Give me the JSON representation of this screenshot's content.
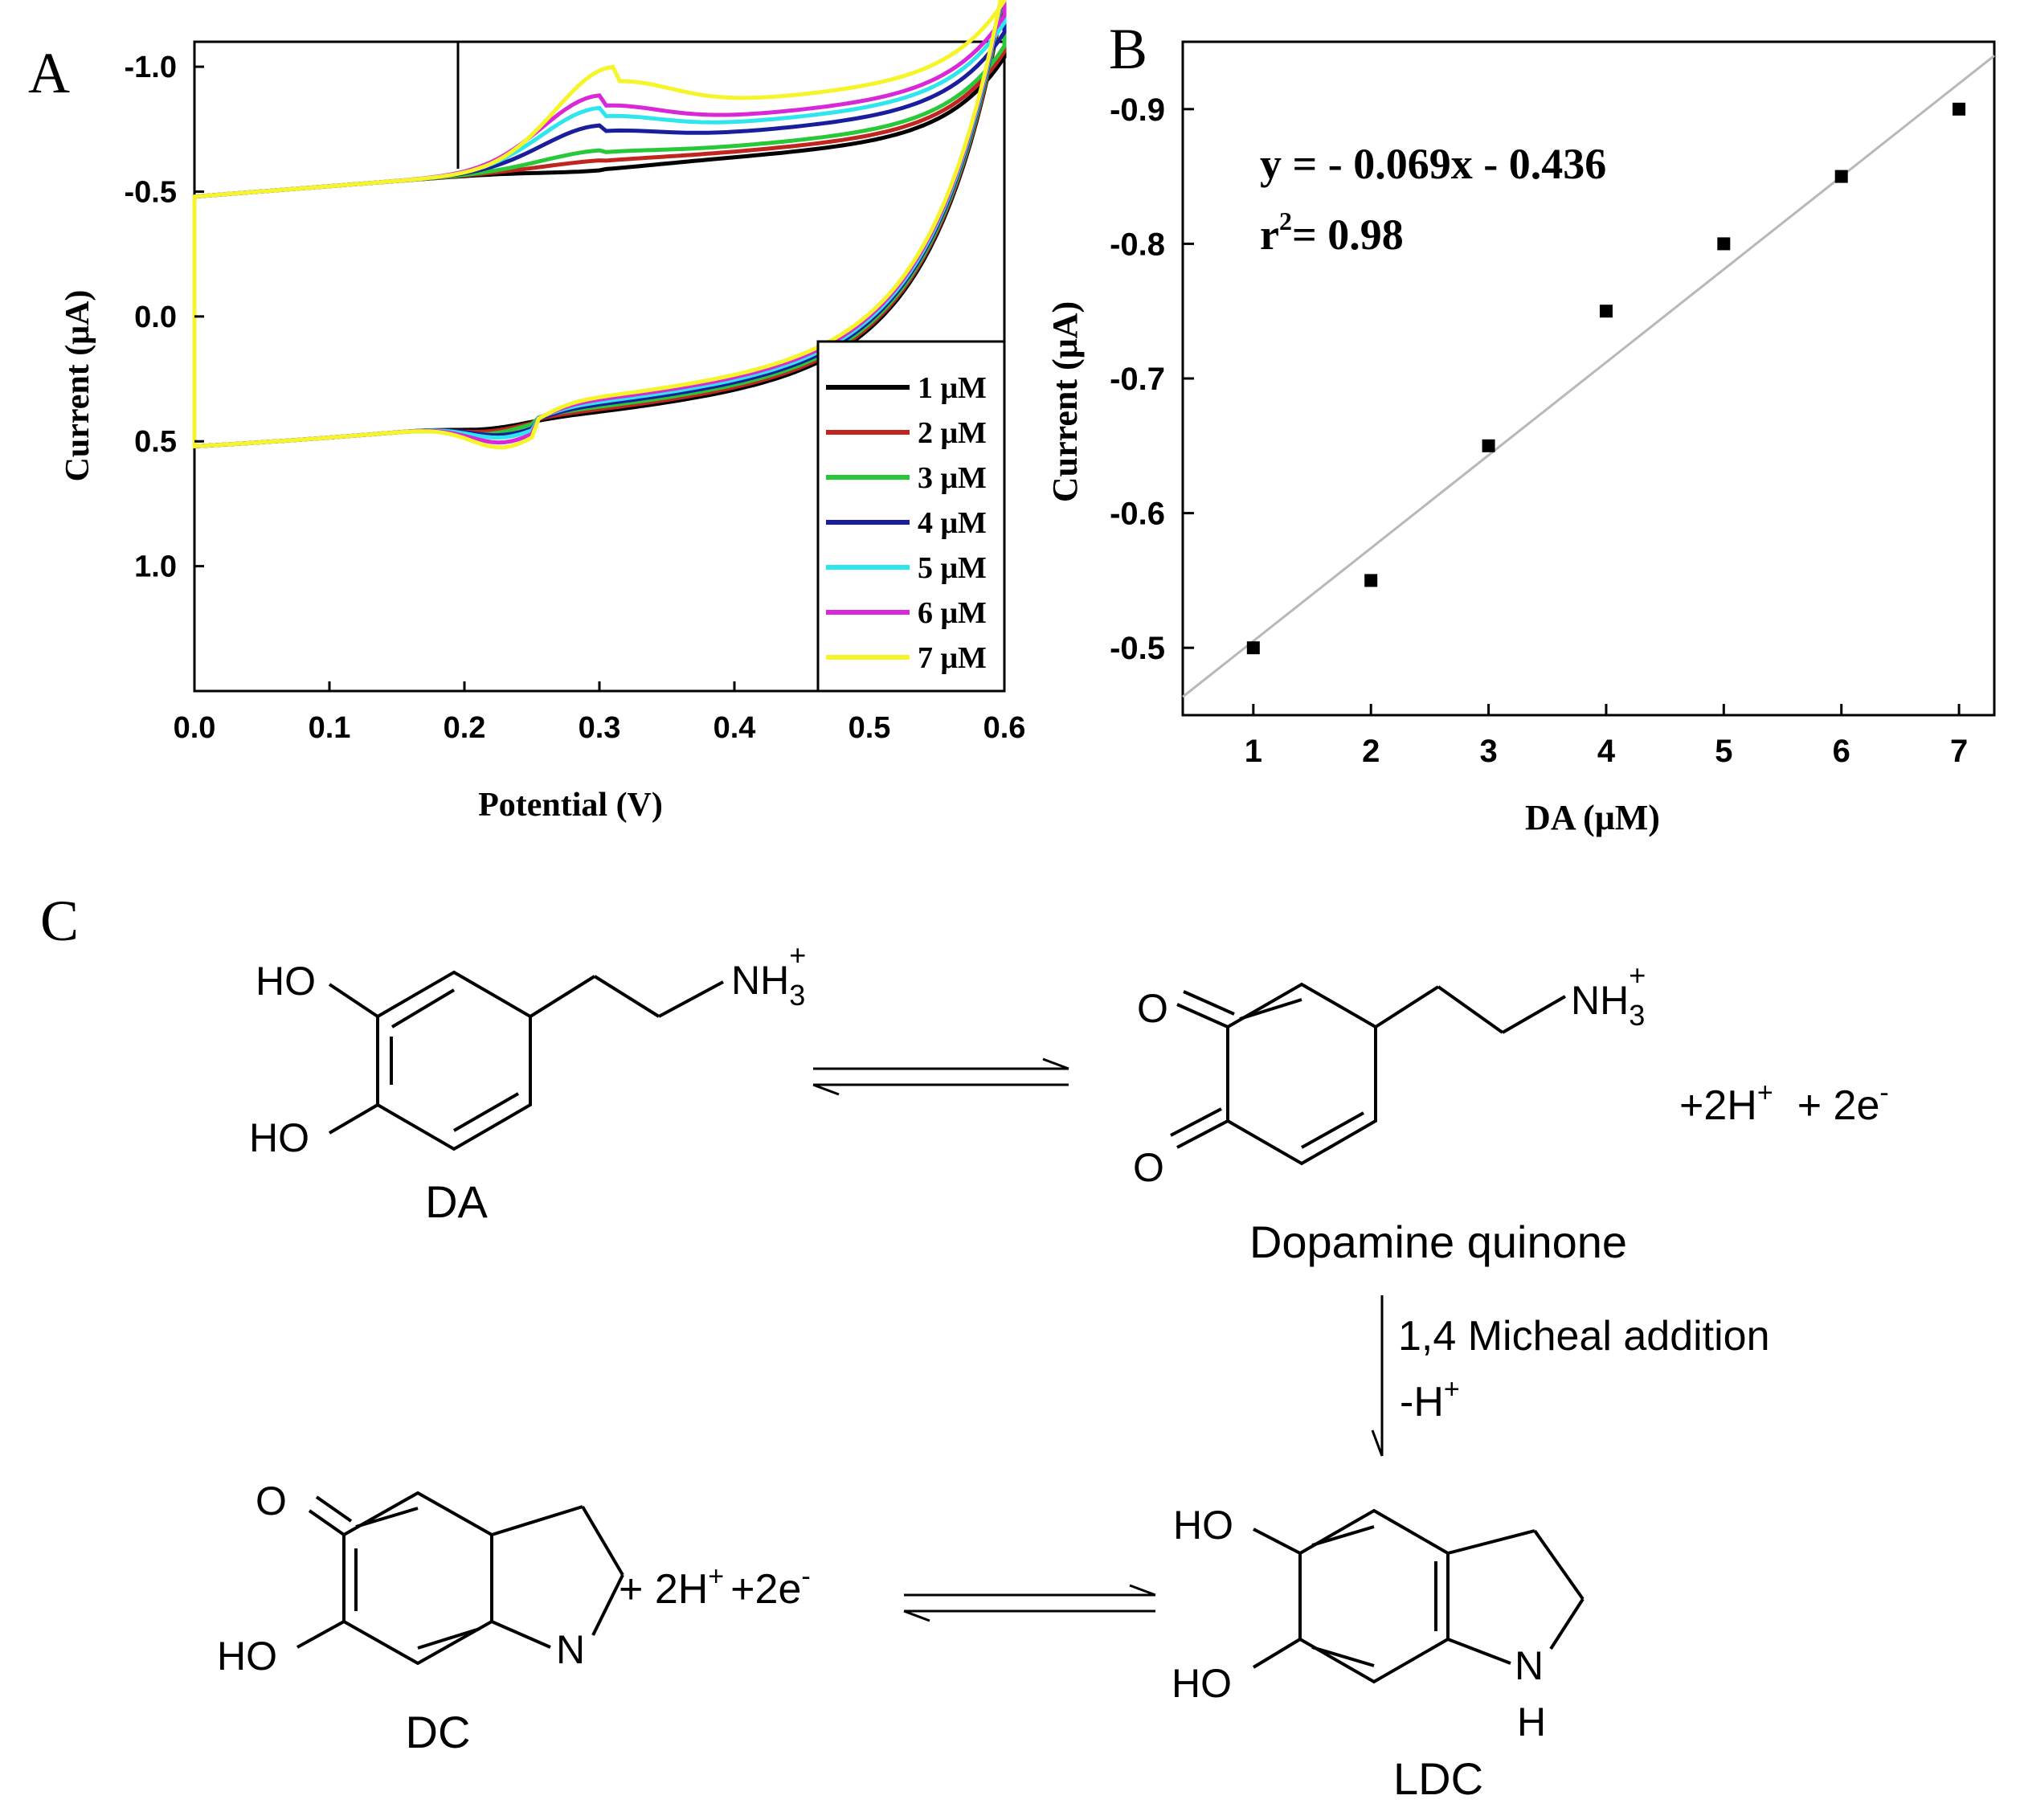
{
  "panels": {
    "a": "A",
    "b": "B",
    "c": "C"
  },
  "chart_data": [
    {
      "panel": "A",
      "type": "line",
      "xlabel": "Potential (V)",
      "ylabel": "Current (μA)",
      "xlim": [
        0.0,
        0.6
      ],
      "ylim": [
        1.5,
        -1.1
      ],
      "y_axis_inverted": true,
      "xticks": [
        "0.0",
        "0.1",
        "0.2",
        "0.3",
        "0.4",
        "0.5",
        "0.6"
      ],
      "yticks": [
        "-1.0",
        "-0.5",
        "0.0",
        "0.5",
        "1.0"
      ],
      "legend_position": "bottom-right",
      "grid": false,
      "series": [
        {
          "name": "1 μM",
          "color": "#000000",
          "peak_ox_v": 0.3,
          "peak_ox_ua": -0.58,
          "peak_red_v": 0.22,
          "peak_red_ua": 0.4
        },
        {
          "name": "2 μM",
          "color": "#c0261f",
          "peak_ox_v": 0.3,
          "peak_ox_ua": -0.62,
          "peak_red_v": 0.22,
          "peak_red_ua": 0.41
        },
        {
          "name": "3 μM",
          "color": "#28c838",
          "peak_ox_v": 0.3,
          "peak_ox_ua": -0.66,
          "peak_red_v": 0.22,
          "peak_red_ua": 0.42
        },
        {
          "name": "4 μM",
          "color": "#1a1e9c",
          "peak_ox_v": 0.3,
          "peak_ox_ua": -0.76,
          "peak_red_v": 0.23,
          "peak_red_ua": 0.43
        },
        {
          "name": "5 μM",
          "color": "#30e6ee",
          "peak_ox_v": 0.3,
          "peak_ox_ua": -0.83,
          "peak_red_v": 0.23,
          "peak_red_ua": 0.44
        },
        {
          "name": "6 μM",
          "color": "#d828d8",
          "peak_ox_v": 0.3,
          "peak_ox_ua": -0.88,
          "peak_red_v": 0.23,
          "peak_red_ua": 0.46
        },
        {
          "name": "7 μM",
          "color": "#f5f52a",
          "peak_ox_v": 0.31,
          "peak_ox_ua": -0.99,
          "peak_red_v": 0.23,
          "peak_red_ua": 0.48
        }
      ]
    },
    {
      "panel": "B",
      "type": "scatter",
      "xlabel": "DA (μM)",
      "ylabel": "Current (μA)",
      "xlim": [
        0.4,
        7.3
      ],
      "ylim": [
        -0.45,
        -0.95
      ],
      "y_axis_inverted": true,
      "xticks": [
        "1",
        "2",
        "3",
        "4",
        "5",
        "6",
        "7"
      ],
      "yticks": [
        "-0.5",
        "-0.6",
        "-0.7",
        "-0.8",
        "-0.9"
      ],
      "x": [
        1,
        2,
        3,
        4,
        5,
        6,
        7
      ],
      "y": [
        -0.5,
        -0.55,
        -0.65,
        -0.75,
        -0.8,
        -0.85,
        -0.9
      ],
      "fit_line": {
        "slope": -0.069,
        "intercept": -0.436
      },
      "annotation": {
        "equation": "y = - 0.069x - 0.436",
        "r2_base": "r",
        "r2_sup": "2",
        "r2_rest": "= 0.98"
      },
      "grid": false
    }
  ],
  "scheme": {
    "da_label": "DA",
    "dq_label": "Dopamine quinone",
    "dc_label": "DC",
    "ldc_label": "LDC",
    "ho": "HO",
    "o": "O",
    "n": "N",
    "h": "H",
    "nh_base": "NH",
    "nh_sub": "3",
    "nh_sup": "+",
    "step1_products_a": "+2H",
    "step1_products_sup1": "+",
    "step1_products_b": "+ 2e",
    "step1_products_sup2": "-",
    "arrow_label_1": "1,4 Micheal addition",
    "arrow_label_2a": "-H",
    "arrow_label_2sup": "+",
    "dc_products_a": "+ 2H",
    "dc_products_sup1": "+",
    "dc_products_b": "+2e",
    "dc_products_sup2": "-"
  }
}
